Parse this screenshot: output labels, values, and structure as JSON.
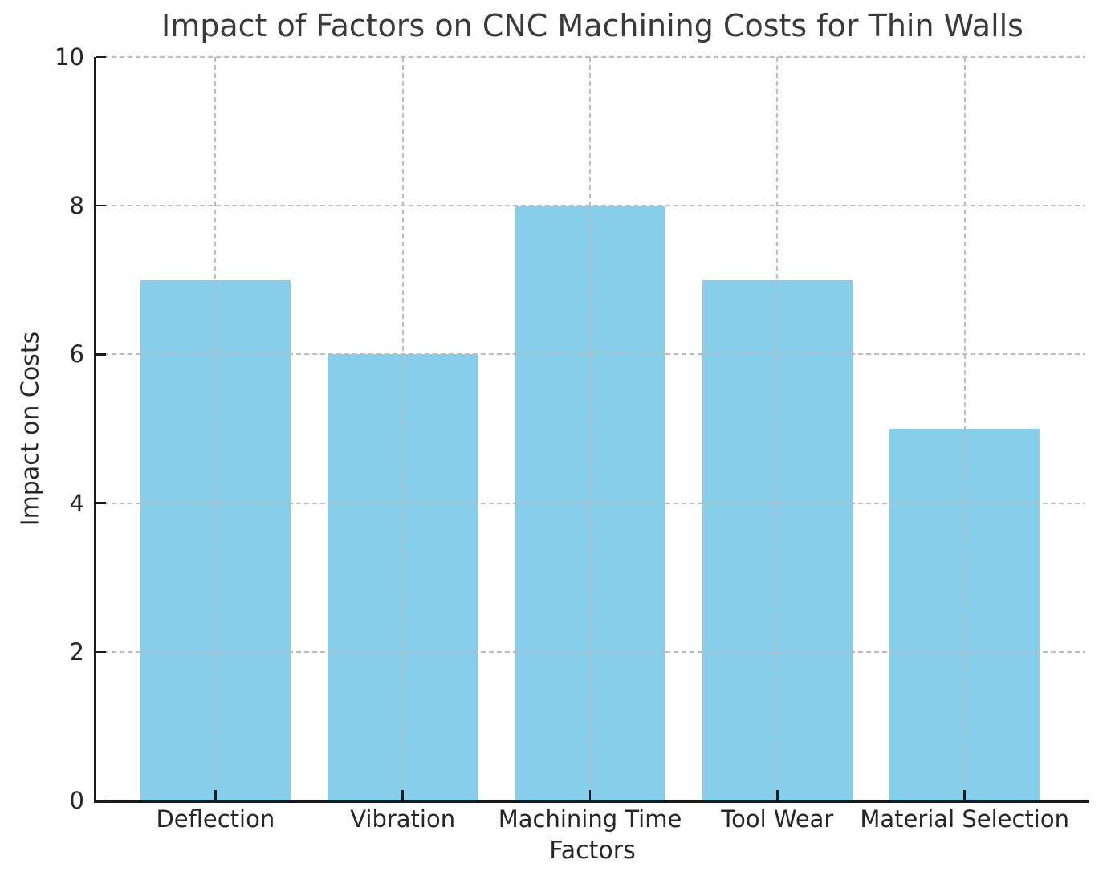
{
  "chart_data": {
    "type": "bar",
    "title": "Impact of Factors on CNC Machining Costs for Thin Walls",
    "xlabel": "Factors",
    "ylabel": "Impact on Costs",
    "categories": [
      "Deflection",
      "Vibration",
      "Machining Time",
      "Tool Wear",
      "Material Selection"
    ],
    "values": [
      7,
      6,
      8,
      7,
      5
    ],
    "ylim": [
      0,
      10
    ],
    "yticks": [
      0,
      2,
      4,
      6,
      8,
      10
    ],
    "bar_color": "#87CEEB",
    "grid": {
      "visible": true,
      "style": "dashed",
      "color": "#bdbdbd",
      "above_bars": true
    },
    "axis_color": "#1a1a1a",
    "text_color": "#262626",
    "background": "#ffffff",
    "legend": "none"
  }
}
